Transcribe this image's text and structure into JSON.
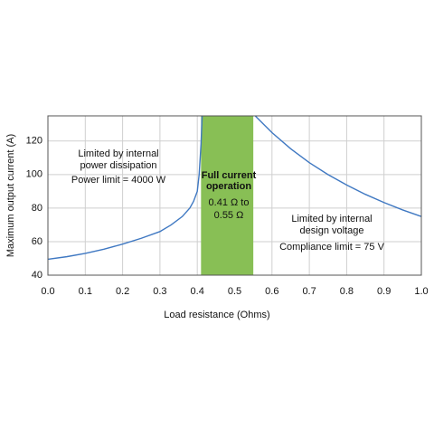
{
  "chart_data": {
    "type": "line",
    "x_label": "Load resistance (Ohms)",
    "y_label": "Maximum output current (A)",
    "xlim": [
      0,
      1
    ],
    "ylim": [
      40,
      135
    ],
    "xticks": [
      {
        "value": 0,
        "label": "0.0"
      },
      0.1,
      0.2,
      0.3,
      0.4,
      0.5,
      0.6,
      0.7,
      0.8,
      0.9,
      {
        "value": 1,
        "label": "1.0"
      }
    ],
    "yticks": [
      40,
      60,
      80,
      100,
      120
    ],
    "grid": true,
    "shaded_region": {
      "x": [
        0.41,
        0.55
      ],
      "color": "#88bf55"
    },
    "series": [
      {
        "color": "#3f78c2",
        "x": [
          0,
          0.05,
          0.1,
          0.15,
          0.2,
          0.25,
          0.3,
          0.33,
          0.36,
          0.38,
          0.39,
          0.4,
          0.405,
          0.41,
          0.413,
          null,
          0.555,
          0.6,
          0.65,
          0.7,
          0.75,
          0.8,
          0.85,
          0.9,
          0.95,
          1.0
        ],
        "values": [
          49.5,
          51,
          53,
          55.5,
          58.5,
          62,
          66,
          70,
          75,
          80,
          84,
          90,
          100,
          118,
          135,
          null,
          135,
          125,
          115.4,
          107.1,
          100,
          93.8,
          88.2,
          83.3,
          78.9,
          75
        ]
      }
    ],
    "annotations": [
      "Limited by internal",
      "power dissipation",
      "Power limit = 4000 W",
      "Full current",
      "operation",
      "0.41 Ω to",
      "0.55 Ω",
      "Limited by internal",
      "design voltage",
      "Compliance limit = 75 V"
    ]
  }
}
